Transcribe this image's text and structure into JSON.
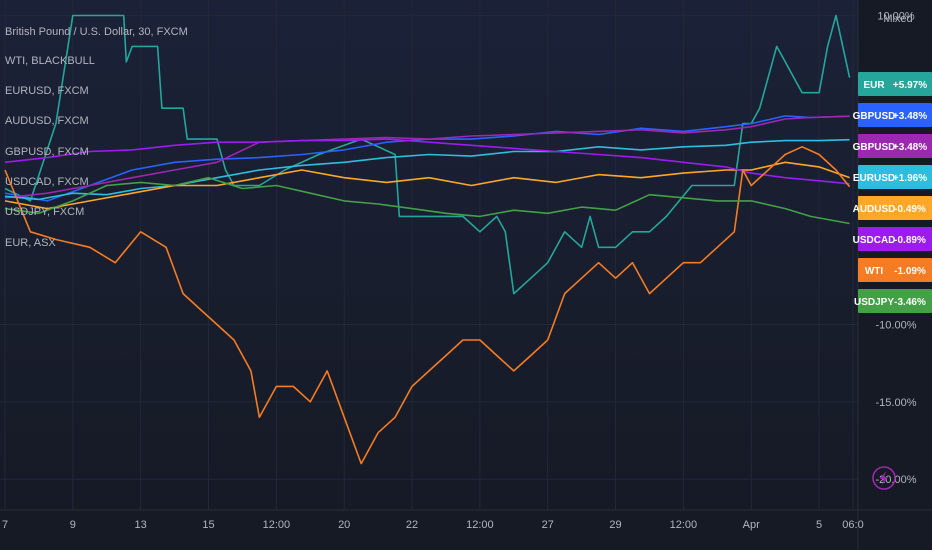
{
  "header": {
    "title": "British Pound / U.S. Dollar, 30, FXCM",
    "legend_lines": [
      "WTI, BLACKBULL",
      "EURUSD, FXCM",
      "AUDUSD, FXCM",
      "GBPUSD, FXCM",
      "USDCAD, FXCM",
      "USDJPY, FXCM",
      "EUR, ASX"
    ]
  },
  "scale": {
    "mode_label": "Mixed"
  },
  "colors": {
    "background": "#161a25",
    "grid": "#232838",
    "EUR": "#26a69a",
    "GBPUSD": "#2962ff",
    "GBPUSD_main": "#9c27b0",
    "EURUSD": "#2dbedf",
    "AUDUSD": "#ffa726",
    "USDCAD": "#9c1cf0",
    "WTI": "#f57c23",
    "USDJPY": "#43a047"
  },
  "icons": {
    "lightning": "lightning-icon"
  },
  "chart_data": {
    "type": "line",
    "ylabel": "",
    "xlabel": "",
    "ylim": [
      -22,
      11
    ],
    "y_ticks": [
      "10.00%",
      "-10.00%",
      "-15.00%",
      "-20.00%"
    ],
    "y_tick_values": [
      10,
      -10,
      -15,
      -20
    ],
    "x_tick_labels": [
      "7",
      "9",
      "13",
      "15",
      "12:00",
      "20",
      "22",
      "12:00",
      "27",
      "29",
      "12:00",
      "Apr",
      "5",
      "06:0"
    ],
    "x_tick_positions": [
      0,
      8,
      16,
      24,
      32,
      40,
      48,
      56,
      64,
      72,
      80,
      88,
      96,
      100
    ],
    "x_domain": [
      0,
      100
    ],
    "series": [
      {
        "name": "EUR",
        "color": "#26a69a",
        "last_label": "+5.97%",
        "points": [
          [
            0,
            -1.2
          ],
          [
            3,
            -2
          ],
          [
            6,
            3
          ],
          [
            8,
            10
          ],
          [
            14,
            10
          ],
          [
            14.3,
            7
          ],
          [
            15,
            8
          ],
          [
            18,
            8
          ],
          [
            18.5,
            4
          ],
          [
            21,
            4
          ],
          [
            21.5,
            2
          ],
          [
            25,
            2
          ],
          [
            26,
            0
          ],
          [
            27,
            -1
          ],
          [
            30,
            -1
          ],
          [
            33,
            0
          ],
          [
            37,
            1
          ],
          [
            42,
            2
          ],
          [
            46,
            1
          ],
          [
            46.5,
            -3
          ],
          [
            52,
            -3
          ],
          [
            54,
            -3
          ],
          [
            56,
            -4
          ],
          [
            58,
            -3
          ],
          [
            59,
            -4
          ],
          [
            60,
            -8
          ],
          [
            62,
            -7
          ],
          [
            64,
            -6
          ],
          [
            66,
            -4
          ],
          [
            68,
            -5
          ],
          [
            69,
            -3
          ],
          [
            70,
            -5
          ],
          [
            72,
            -5
          ],
          [
            74,
            -4
          ],
          [
            76,
            -4
          ],
          [
            78,
            -3
          ],
          [
            81,
            -1
          ],
          [
            84,
            -1
          ],
          [
            86,
            -1
          ],
          [
            87,
            3
          ],
          [
            88,
            3
          ],
          [
            89,
            4
          ],
          [
            91,
            8
          ],
          [
            92,
            7
          ],
          [
            94,
            5
          ],
          [
            96,
            5
          ],
          [
            97,
            8
          ],
          [
            98,
            10
          ],
          [
            99.6,
            5.97
          ]
        ]
      },
      {
        "name": "GBPUSD",
        "color": "#2962ff",
        "last_label": "+3.48%",
        "points": [
          [
            0,
            -1.5
          ],
          [
            5,
            -2
          ],
          [
            10,
            -1
          ],
          [
            15,
            0
          ],
          [
            20,
            0.5
          ],
          [
            25,
            0.7
          ],
          [
            30,
            0.8
          ],
          [
            35,
            1
          ],
          [
            40,
            1.3
          ],
          [
            45,
            1.8
          ],
          [
            50,
            2
          ],
          [
            55,
            2
          ],
          [
            60,
            2.2
          ],
          [
            65,
            2.5
          ],
          [
            70,
            2.3
          ],
          [
            75,
            2.7
          ],
          [
            80,
            2.5
          ],
          [
            85,
            2.8
          ],
          [
            88,
            3
          ],
          [
            92,
            3.5
          ],
          [
            95,
            3.4
          ],
          [
            99.6,
            3.48
          ]
        ]
      },
      {
        "name": "GBPUSD",
        "color": "#9c27b0",
        "last_label": "+3.48%",
        "points": [
          [
            0,
            -1.8
          ],
          [
            5,
            -1.5
          ],
          [
            10,
            -1
          ],
          [
            15,
            -0.5
          ],
          [
            20,
            0
          ],
          [
            25,
            0.5
          ],
          [
            30,
            1.8
          ],
          [
            35,
            1.9
          ],
          [
            40,
            2
          ],
          [
            45,
            2.1
          ],
          [
            50,
            2
          ],
          [
            55,
            2.2
          ],
          [
            60,
            2.3
          ],
          [
            65,
            2.4
          ],
          [
            70,
            2.5
          ],
          [
            75,
            2.6
          ],
          [
            80,
            2.4
          ],
          [
            85,
            2.6
          ],
          [
            88,
            2.8
          ],
          [
            92,
            3.3
          ],
          [
            95,
            3.4
          ],
          [
            99.6,
            3.48
          ]
        ]
      },
      {
        "name": "EURUSD",
        "color": "#2dbedf",
        "last_label": "+1.96%",
        "points": [
          [
            0,
            -1.7
          ],
          [
            4,
            -1.9
          ],
          [
            8,
            -1.5
          ],
          [
            12,
            -1.6
          ],
          [
            16,
            -1.2
          ],
          [
            20,
            -1
          ],
          [
            25,
            -0.5
          ],
          [
            30,
            0
          ],
          [
            35,
            0.3
          ],
          [
            40,
            0.5
          ],
          [
            45,
            0.8
          ],
          [
            50,
            1
          ],
          [
            55,
            0.9
          ],
          [
            60,
            1.2
          ],
          [
            65,
            1.2
          ],
          [
            70,
            1.5
          ],
          [
            75,
            1.3
          ],
          [
            80,
            1.5
          ],
          [
            85,
            1.6
          ],
          [
            88,
            1.8
          ],
          [
            92,
            1.9
          ],
          [
            96,
            1.9
          ],
          [
            99.6,
            1.96
          ]
        ]
      },
      {
        "name": "AUDUSD",
        "color": "#ffa726",
        "last_label": "-0.49%",
        "points": [
          [
            0,
            -2
          ],
          [
            5,
            -2.5
          ],
          [
            10,
            -2
          ],
          [
            15,
            -1.5
          ],
          [
            20,
            -1
          ],
          [
            25,
            -1
          ],
          [
            30,
            -0.5
          ],
          [
            35,
            0
          ],
          [
            40,
            -0.5
          ],
          [
            45,
            -0.8
          ],
          [
            50,
            -0.5
          ],
          [
            55,
            -1
          ],
          [
            60,
            -0.5
          ],
          [
            65,
            -0.8
          ],
          [
            70,
            -0.3
          ],
          [
            75,
            -0.5
          ],
          [
            80,
            -0.2
          ],
          [
            85,
            0
          ],
          [
            88,
            0
          ],
          [
            92,
            0.5
          ],
          [
            96,
            0.2
          ],
          [
            99.6,
            -0.49
          ]
        ]
      },
      {
        "name": "USDCAD",
        "color": "#9c1cf0",
        "last_label": "-0.89%",
        "points": [
          [
            0,
            0.5
          ],
          [
            5,
            0.8
          ],
          [
            10,
            1.2
          ],
          [
            15,
            1.3
          ],
          [
            20,
            1.6
          ],
          [
            25,
            1.8
          ],
          [
            30,
            1.8
          ],
          [
            35,
            1.9
          ],
          [
            40,
            1.9
          ],
          [
            45,
            2
          ],
          [
            50,
            1.8
          ],
          [
            55,
            1.6
          ],
          [
            60,
            1.4
          ],
          [
            65,
            1.2
          ],
          [
            70,
            1
          ],
          [
            75,
            0.8
          ],
          [
            80,
            0.5
          ],
          [
            85,
            0.2
          ],
          [
            88,
            -0.2
          ],
          [
            92,
            -0.5
          ],
          [
            96,
            -0.7
          ],
          [
            99.6,
            -0.89
          ]
        ]
      },
      {
        "name": "WTI",
        "color": "#f57c23",
        "last_label": "-1.09%",
        "points": [
          [
            0,
            0
          ],
          [
            3,
            -4
          ],
          [
            6,
            -4.5
          ],
          [
            10,
            -5
          ],
          [
            13,
            -6
          ],
          [
            16,
            -4
          ],
          [
            19,
            -5
          ],
          [
            21,
            -8
          ],
          [
            23,
            -9
          ],
          [
            25,
            -10
          ],
          [
            27,
            -11
          ],
          [
            29,
            -13
          ],
          [
            30,
            -16
          ],
          [
            32,
            -14
          ],
          [
            34,
            -14
          ],
          [
            36,
            -15
          ],
          [
            38,
            -13
          ],
          [
            40,
            -16
          ],
          [
            42,
            -19
          ],
          [
            44,
            -17
          ],
          [
            46,
            -16
          ],
          [
            48,
            -14
          ],
          [
            50,
            -13
          ],
          [
            52,
            -12
          ],
          [
            54,
            -11
          ],
          [
            56,
            -11
          ],
          [
            58,
            -12
          ],
          [
            60,
            -13
          ],
          [
            62,
            -12
          ],
          [
            64,
            -11
          ],
          [
            66,
            -8
          ],
          [
            68,
            -7
          ],
          [
            70,
            -6
          ],
          [
            72,
            -7
          ],
          [
            74,
            -6
          ],
          [
            76,
            -8
          ],
          [
            78,
            -7
          ],
          [
            80,
            -6
          ],
          [
            82,
            -6
          ],
          [
            84,
            -5
          ],
          [
            86,
            -4
          ],
          [
            87,
            0
          ],
          [
            88,
            -1
          ],
          [
            90,
            0
          ],
          [
            92,
            1
          ],
          [
            94,
            1.5
          ],
          [
            96,
            1
          ],
          [
            98,
            0
          ],
          [
            99.6,
            -1.09
          ]
        ]
      },
      {
        "name": "USDJPY",
        "color": "#43a047",
        "last_label": "-3.46%",
        "points": [
          [
            0,
            -2.5
          ],
          [
            4,
            -2.8
          ],
          [
            8,
            -2
          ],
          [
            12,
            -1
          ],
          [
            16,
            -0.8
          ],
          [
            20,
            -1
          ],
          [
            24,
            -0.5
          ],
          [
            28,
            -1.2
          ],
          [
            32,
            -1
          ],
          [
            36,
            -1.5
          ],
          [
            40,
            -2
          ],
          [
            44,
            -2.2
          ],
          [
            48,
            -2.5
          ],
          [
            52,
            -2.8
          ],
          [
            56,
            -3
          ],
          [
            60,
            -2.6
          ],
          [
            64,
            -2.8
          ],
          [
            68,
            -2.4
          ],
          [
            72,
            -2.6
          ],
          [
            76,
            -1.6
          ],
          [
            80,
            -1.8
          ],
          [
            84,
            -2
          ],
          [
            88,
            -2
          ],
          [
            92,
            -2.5
          ],
          [
            95,
            -3
          ],
          [
            99.6,
            -3.46
          ]
        ]
      }
    ]
  }
}
